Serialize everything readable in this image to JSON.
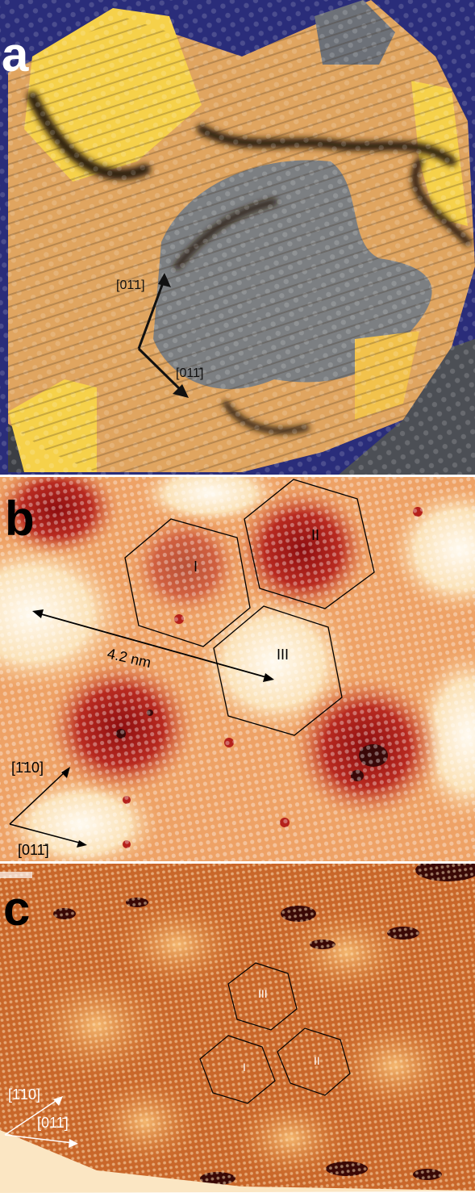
{
  "panels": [
    {
      "letter": "a",
      "labels": {
        "dir1": "[01̄1]",
        "dir2": "[011̄]"
      },
      "colors": {
        "background": "#2a2d7a",
        "terrace": "#e0a560",
        "high": "#f6d14a",
        "grey": "#7c7f82"
      }
    },
    {
      "letter": "b",
      "labels": {
        "hex1": "I",
        "hex2": "II",
        "hex3": "III",
        "distance": "4.2 nm",
        "dir1": "[1̄10]",
        "dir2": "[011̄]"
      },
      "colors": {
        "bright": "#fff4dc",
        "mid": "#f0a868",
        "dark": "#b5201b"
      }
    },
    {
      "letter": "c",
      "labels": {
        "hex1": "III",
        "hex2": "I",
        "hex3": "II",
        "dir1": "[1̄10]",
        "dir2": "[011̄]"
      },
      "colors": {
        "bright": "#f7d3a0",
        "mid": "#d26d2a",
        "dark": "#7a1d08"
      }
    }
  ]
}
